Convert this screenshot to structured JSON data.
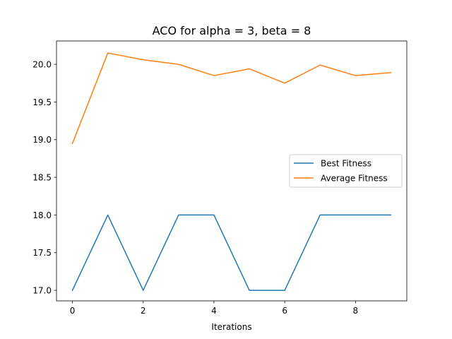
{
  "chart_data": {
    "type": "line",
    "title": "ACO for alpha = 3, beta = 8",
    "xlabel": "Iterations",
    "ylabel": "",
    "x": [
      0,
      1,
      2,
      3,
      4,
      5,
      6,
      7,
      8,
      9
    ],
    "xlim": [
      -0.45,
      9.45
    ],
    "ylim": [
      16.86,
      20.31
    ],
    "xticks": [
      0,
      2,
      4,
      6,
      8
    ],
    "yticks": [
      17.0,
      17.5,
      18.0,
      18.5,
      19.0,
      19.5,
      20.0
    ],
    "grid": false,
    "legend_position": "center-right",
    "series": [
      {
        "name": "Best Fitness",
        "color": "#1f77b4",
        "values": [
          17,
          18,
          17,
          18,
          18,
          17,
          17,
          18,
          18,
          18
        ]
      },
      {
        "name": "Average Fitness",
        "color": "#ff7f0e",
        "values": [
          18.95,
          20.15,
          20.06,
          20.0,
          19.85,
          19.94,
          19.75,
          19.99,
          19.85,
          19.89
        ]
      }
    ]
  }
}
